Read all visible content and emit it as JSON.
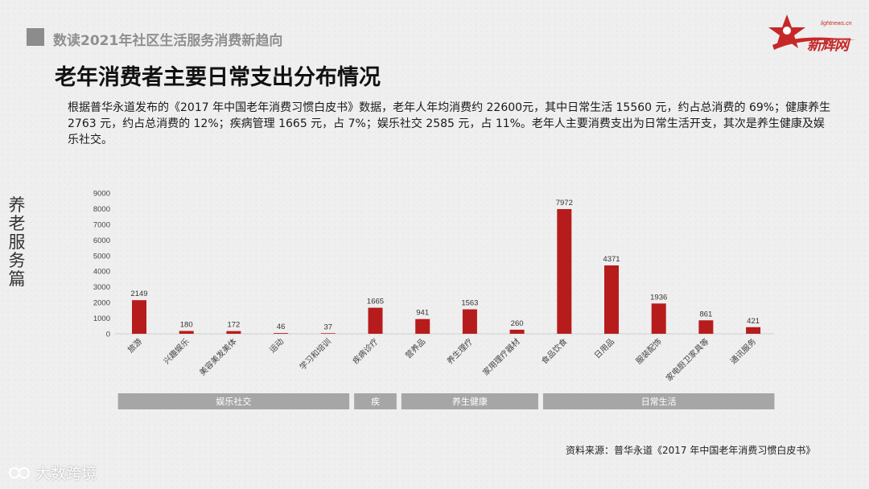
{
  "header": {
    "subtitle": "数读2021年社区生活服务消费新趋向",
    "title": "老年消费者主要日常支出分布情况"
  },
  "logo": {
    "url": "lightnews.cn",
    "text": "新辉网",
    "icon": "red-star-logo-icon"
  },
  "paragraph": "根据普华永道发布的《2017 年中国老年消费习惯白皮书》数据，老年人年均消费约 22600元，其中日常生活 15560 元，约占总消费的 69%；健康养生 2763 元，约占总消费的 12%；疾病管理 1665 元，占 7%；娱乐社交 2585 元，占 11%。老年人主要消费支出为日常生活开支，其次是养生健康及娱乐社交。",
  "side_label": "养老服务篇",
  "source": "资料来源：普华永道《2017 年中国老年消费习惯白皮书》",
  "watermark": {
    "text": "大数跨境",
    "icon": "dashuju-logo-icon"
  },
  "colors": {
    "bar": "#b71c1c",
    "group_band": "#a6a6a6",
    "accent": "#c62828"
  },
  "chart_data": {
    "type": "bar",
    "categories": [
      "旅游",
      "兴趣娱乐",
      "美容美发美体",
      "运动",
      "学习和培训",
      "疾病诊疗",
      "营养品",
      "养生理疗",
      "家用理疗器材",
      "食品饮食",
      "日用品",
      "服装配饰",
      "家电厨卫家具等",
      "通讯服务"
    ],
    "values": [
      2149,
      180,
      172,
      46,
      37,
      1665,
      941,
      1563,
      260,
      7972,
      4371,
      1936,
      861,
      421
    ],
    "y_ticks": [
      0,
      1000,
      2000,
      3000,
      4000,
      5000,
      6000,
      7000,
      8000,
      9000
    ],
    "ylim": [
      0,
      9000
    ],
    "grid": false,
    "groups": [
      {
        "label": "娱乐社交",
        "first": 0,
        "last": 4
      },
      {
        "label": "疾",
        "first": 5,
        "last": 5
      },
      {
        "label": "养生健康",
        "first": 6,
        "last": 8
      },
      {
        "label": "日常生活",
        "first": 9,
        "last": 13
      }
    ]
  }
}
